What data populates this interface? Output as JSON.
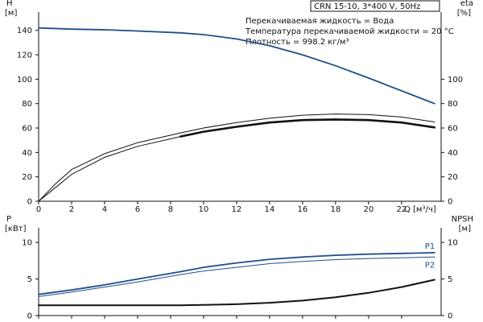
{
  "chart_data": [
    {
      "type": "line",
      "name": "H/eta",
      "title": "CRN 15-10, 3*400 V, 50Hz",
      "info_lines": [
        "Перекачиваемая жидкость = Вода",
        "Температура перекачиваемой жидкости = 20 °C",
        "Плотность = 998.2 кг/м³"
      ],
      "ylabel_left": "H",
      "yunit_left": "[м]",
      "ylabel_right": "eta",
      "yunit_right": "[%]",
      "xlabel": "Q",
      "xunit": "[м³/ч]",
      "xlim": [
        0,
        24.4
      ],
      "xticks": [
        0,
        2,
        4,
        6,
        8,
        10,
        12,
        14,
        16,
        18,
        20,
        22
      ],
      "ylim_left": [
        0,
        155
      ],
      "yticks_left": [
        0,
        20,
        40,
        60,
        80,
        100,
        120,
        140
      ],
      "yticks_right": [
        0,
        20,
        40,
        60,
        80,
        100
      ],
      "grid": false,
      "series": [
        {
          "key": "H",
          "axis": "left",
          "color": "#1f4e8c",
          "style": "main",
          "x": [
            0,
            2,
            4,
            6,
            8.6,
            10,
            12,
            14,
            16,
            18,
            20,
            22,
            24
          ],
          "y": [
            142,
            141,
            140.5,
            139.5,
            138,
            136.5,
            133,
            127.5,
            120,
            111,
            101,
            90.5,
            80
          ]
        },
        {
          "key": "eta_outer",
          "axis": "right",
          "color": "#111111",
          "style": "thin",
          "x": [
            0,
            1,
            2,
            4,
            6,
            8.6,
            10,
            12,
            14,
            16,
            18,
            20,
            22,
            24
          ],
          "y": [
            0,
            14,
            26,
            39,
            48,
            56,
            60,
            64.5,
            68,
            70.5,
            71.5,
            71,
            69,
            65
          ]
        },
        {
          "key": "eta_inner",
          "axis": "right",
          "color": "#111111",
          "style": "thin",
          "x": [
            0,
            1,
            2,
            4,
            6,
            8.6,
            10,
            12,
            14,
            16,
            18,
            20,
            22,
            24
          ],
          "y": [
            0,
            11,
            22,
            36,
            45,
            53,
            57,
            61,
            64.5,
            66.5,
            67,
            66.5,
            64.5,
            60.5
          ]
        },
        {
          "key": "eta_op",
          "axis": "right",
          "color": "#111111",
          "style": "bold",
          "x": [
            8.6,
            10,
            12,
            14,
            16,
            18,
            20,
            22,
            24
          ],
          "y": [
            53,
            57,
            61,
            64.5,
            66.5,
            67,
            66.5,
            64.5,
            60.5
          ]
        }
      ]
    },
    {
      "type": "line",
      "name": "P/NPSH",
      "ylabel_left": "P",
      "yunit_left": "[кВт]",
      "ylabel_right": "NPSH",
      "yunit_right": "[м]",
      "xlim": [
        0,
        24.4
      ],
      "ylim_left": [
        0,
        12
      ],
      "yticks_left": [
        0,
        5,
        10
      ],
      "yticks_right": [
        0,
        5,
        10
      ],
      "grid": false,
      "series": [
        {
          "key": "P1",
          "name": "P1",
          "axis": "left",
          "color": "#1f4e8c",
          "style": "main",
          "x": [
            0,
            2,
            4,
            6,
            8.6,
            10,
            12,
            14,
            16,
            18,
            20,
            22,
            24
          ],
          "y": [
            2.9,
            3.5,
            4.2,
            5.0,
            6.0,
            6.6,
            7.2,
            7.7,
            8.0,
            8.25,
            8.4,
            8.5,
            8.6
          ]
        },
        {
          "key": "P2",
          "name": "P2",
          "axis": "left",
          "color": "#1f4e8c",
          "style": "thin",
          "x": [
            0,
            2,
            4,
            6,
            8.6,
            10,
            12,
            14,
            16,
            18,
            20,
            22,
            24
          ],
          "y": [
            2.6,
            3.2,
            3.9,
            4.6,
            5.6,
            6.1,
            6.6,
            7.1,
            7.4,
            7.65,
            7.8,
            7.9,
            8.0
          ]
        },
        {
          "key": "NPSH",
          "axis": "right",
          "color": "#111111",
          "style": "npsh",
          "x": [
            0,
            4,
            8.6,
            10,
            12,
            14,
            16,
            18,
            20,
            22,
            24
          ],
          "y": [
            1.4,
            1.4,
            1.4,
            1.45,
            1.55,
            1.75,
            2.05,
            2.5,
            3.1,
            3.9,
            4.9
          ]
        }
      ]
    }
  ]
}
